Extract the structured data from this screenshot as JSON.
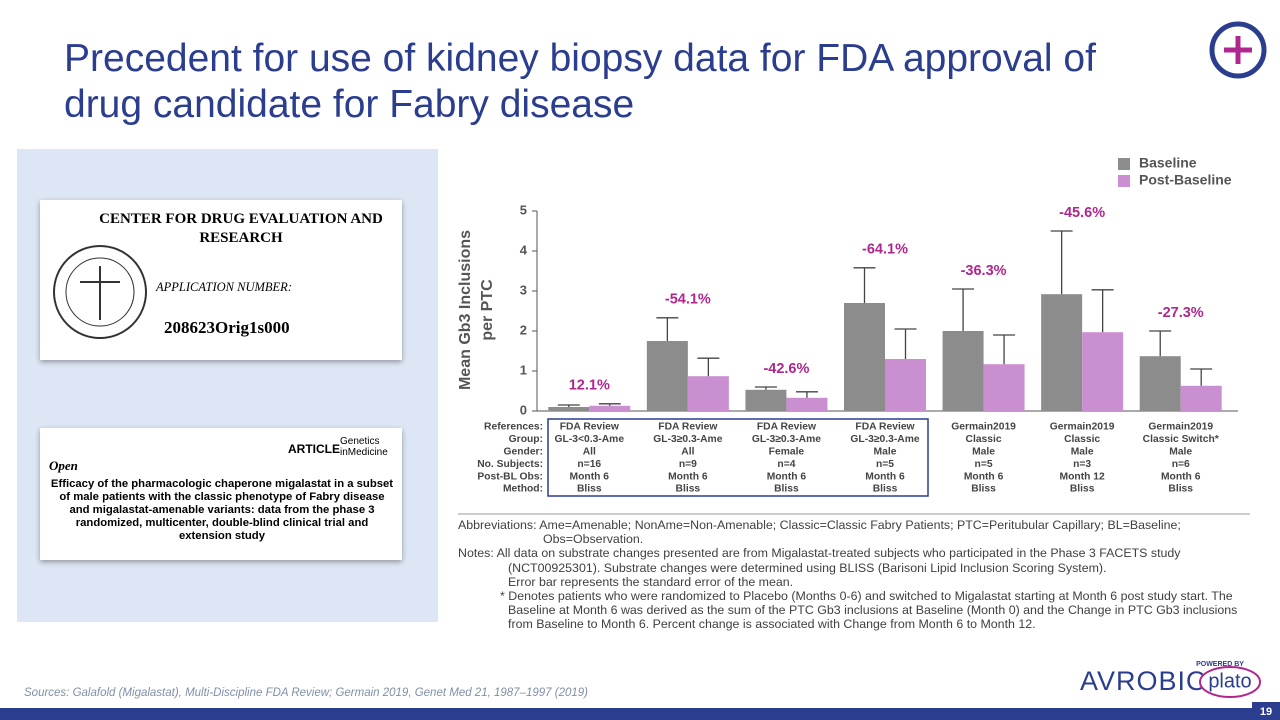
{
  "slide": {
    "title": "Precedent for use of kidney biopsy data for FDA approval of drug candidate for Fabry disease",
    "sources": "Sources: Galafold (Migalastat), Multi-Discipline FDA Review; Germain 2019, Genet Med 21, 1987–1997 (2019)",
    "page_number": 19,
    "logo": {
      "powered_by": "POWERED BY",
      "brand": "AVROBIO",
      "platform": "plato"
    }
  },
  "documents": {
    "fda": {
      "header": "CENTER FOR DRUG EVALUATION AND RESEARCH",
      "application_label": "APPLICATION NUMBER:",
      "application_number": "208623Orig1s000"
    },
    "article": {
      "type": "ARTICLE",
      "journal": "Genetics inMedicine",
      "access": "Open",
      "title": "Efficacy of the pharmacologic chaperone migalastat in a subset of male patients with the classic phenotype of Fabry disease and migalastat-amenable variants: data from the phase 3 randomized, multicenter, double-blind clinical trial and extension study"
    }
  },
  "notes": [
    {
      "label": "Abbreviations:",
      "text": "Ame=Amenable; NonAme=Non-Amenable; Classic=Classic Fabry Patients; PTC=Peritubular Capillary; BL=Baseline; Obs=Observation."
    },
    {
      "label": "Notes:",
      "text": "All data on substrate changes presented are from Migalastat-treated subjects who participated in the Phase 3 FACETS study (NCT00925301). Substrate changes were determined using BLISS (Barisoni Lipid Inclusion Scoring System)."
    },
    {
      "label": "",
      "text": "Error bar represents the standard error of the mean."
    },
    {
      "label": "*",
      "text": "Denotes patients who were randomized to Placebo (Months 0-6) and switched to Migalastat starting at Month 6 post study start. The Baseline at Month 6 was derived as the sum of the PTC Gb3 inclusions at Baseline (Month 0) and the Change in PTC Gb3 inclusions from Baseline to Month 6. Percent change is associated with Change from Month 6 to Month 12."
    }
  ],
  "chart_data": {
    "type": "bar",
    "ylabel": [
      "Mean Gb3 Inclusions",
      "per PTC"
    ],
    "ylim": [
      0,
      5
    ],
    "yticks": [
      0,
      1,
      2,
      3,
      4,
      5
    ],
    "legend": "top-right",
    "row_labels": [
      "References:",
      "Group:",
      "Gender:",
      "No. Subjects:",
      "Post-BL Obs:",
      "Method:"
    ],
    "columns": [
      [
        "FDA Review",
        "GL-3<0.3-Ame",
        "All",
        "n=16",
        "Month 6",
        "Bliss"
      ],
      [
        "FDA Review",
        "GL-3≥0.3-Ame",
        "All",
        "n=9",
        "Month 6",
        "Bliss"
      ],
      [
        "FDA Review",
        "GL-3≥0.3-Ame",
        "Female",
        "n=4",
        "Month 6",
        "Bliss"
      ],
      [
        "FDA Review",
        "GL-3≥0.3-Ame",
        "Male",
        "n=5",
        "Month 6",
        "Bliss"
      ],
      [
        "Germain2019",
        "Classic",
        "Male",
        "n=5",
        "Month 6",
        "Bliss"
      ],
      [
        "Germain2019",
        "Classic",
        "Male",
        "n=3",
        "Month 12",
        "Bliss"
      ],
      [
        "Germain2019",
        "Classic Switch*",
        "Male",
        "n=6",
        "Month 6",
        "Bliss"
      ]
    ],
    "series": [
      {
        "name": "Baseline",
        "color": "#8c8c8c",
        "values": [
          0.1,
          1.75,
          0.53,
          2.7,
          2.0,
          2.92,
          1.37
        ],
        "errors": [
          0.05,
          0.58,
          0.07,
          0.88,
          1.05,
          1.58,
          0.63
        ]
      },
      {
        "name": "Post-Baseline",
        "color": "#c98fd0",
        "values": [
          0.13,
          0.87,
          0.33,
          1.3,
          1.17,
          1.97,
          0.63
        ],
        "errors": [
          0.05,
          0.45,
          0.15,
          0.75,
          0.73,
          1.06,
          0.42
        ]
      }
    ],
    "change_labels": [
      "12.1%",
      "-54.1%",
      "-42.6%",
      "-64.1%",
      "-36.3%",
      "-45.6%",
      "-27.3%"
    ],
    "change_color": "#b0268f"
  }
}
